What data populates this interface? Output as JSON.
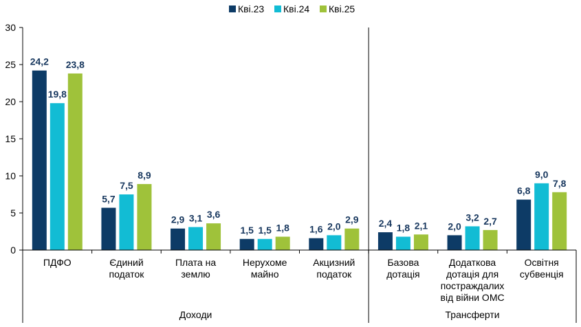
{
  "chart_data": {
    "type": "bar",
    "series": [
      {
        "name": "Кві.23",
        "color": "#0d3b66",
        "values": [
          24.2,
          5.7,
          2.9,
          1.5,
          1.6,
          2.4,
          2.0,
          6.8
        ]
      },
      {
        "name": "Кві.24",
        "color": "#12bcd4",
        "values": [
          19.8,
          7.5,
          3.1,
          1.5,
          2.0,
          1.8,
          3.2,
          9.0
        ]
      },
      {
        "name": "Кві.25",
        "color": "#9fc23a",
        "values": [
          23.8,
          8.9,
          3.6,
          1.8,
          2.9,
          2.1,
          2.7,
          7.8
        ]
      }
    ],
    "value_labels": [
      [
        "24,2",
        "5,7",
        "2,9",
        "1,5",
        "1,6",
        "2,4",
        "2,0",
        "6,8"
      ],
      [
        "19,8",
        "7,5",
        "3,1",
        "1,5",
        "2,0",
        "1,8",
        "3,2",
        "9,0"
      ],
      [
        "23,8",
        "8,9",
        "3,6",
        "1,8",
        "2,9",
        "2,1",
        "2,7",
        "7,8"
      ]
    ],
    "categories": [
      [
        "ПДФО"
      ],
      [
        "Єдиний",
        "податок"
      ],
      [
        "Плата на",
        "землю"
      ],
      [
        "Нерухоме",
        "майно"
      ],
      [
        "Акцизний",
        "податок"
      ],
      [
        "Базова",
        "дотація"
      ],
      [
        "Додаткова",
        "дотація для",
        "постраждалих",
        "від війни ОМС"
      ],
      [
        "Освітня",
        "субвенція"
      ]
    ],
    "groups": [
      {
        "label": "Доходи",
        "start": 0,
        "end": 4
      },
      {
        "label": "Трансферти",
        "start": 5,
        "end": 7
      }
    ],
    "ylim": [
      0,
      30
    ],
    "yticks": [
      "0",
      "5",
      "10",
      "15",
      "20",
      "25",
      "30"
    ],
    "legend_position": "top-center",
    "grid": false
  }
}
